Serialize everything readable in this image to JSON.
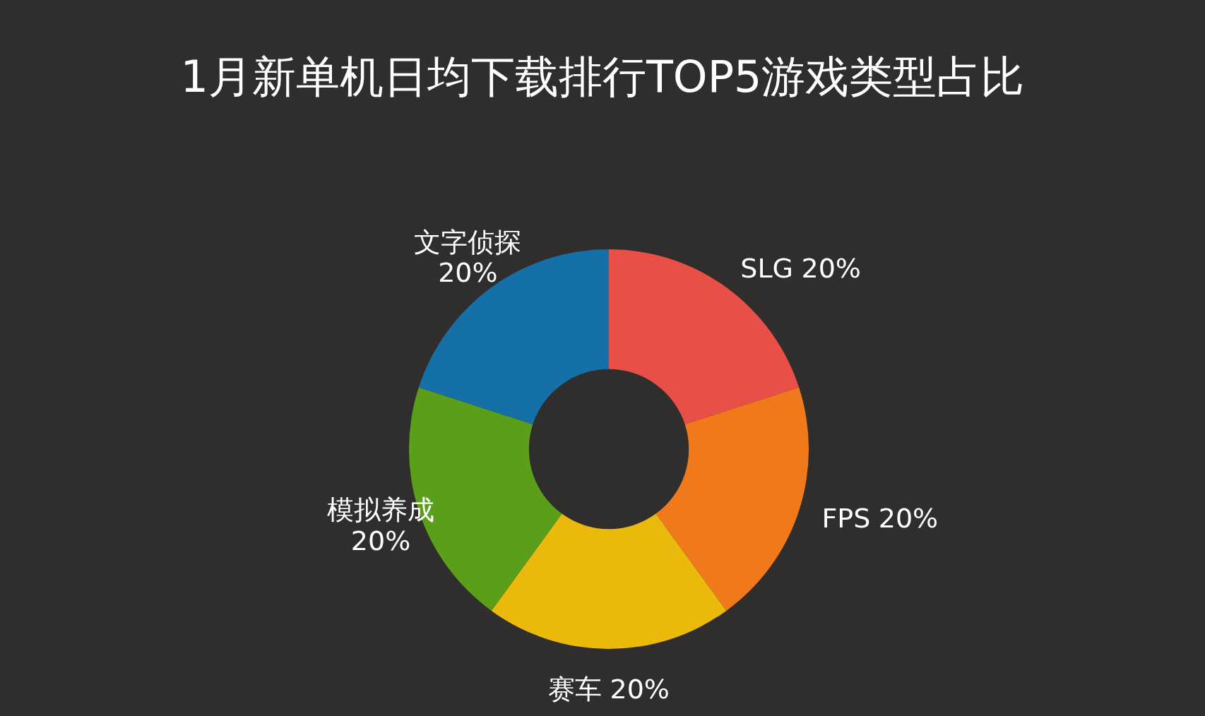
{
  "chart_data": {
    "type": "donut",
    "title": "1月新单机日均下载排行TOP5游戏类型占比",
    "categories": [
      "SLG",
      "FPS",
      "赛车",
      "模拟养成",
      "文字侦探"
    ],
    "values": [
      20,
      20,
      20,
      20,
      20
    ],
    "value_labels": [
      "20%",
      "20%",
      "20%",
      "20%",
      "20%"
    ],
    "colors": [
      "#e84f47",
      "#f07a1b",
      "#ebb80c",
      "#5a9e1a",
      "#1670a8"
    ]
  }
}
